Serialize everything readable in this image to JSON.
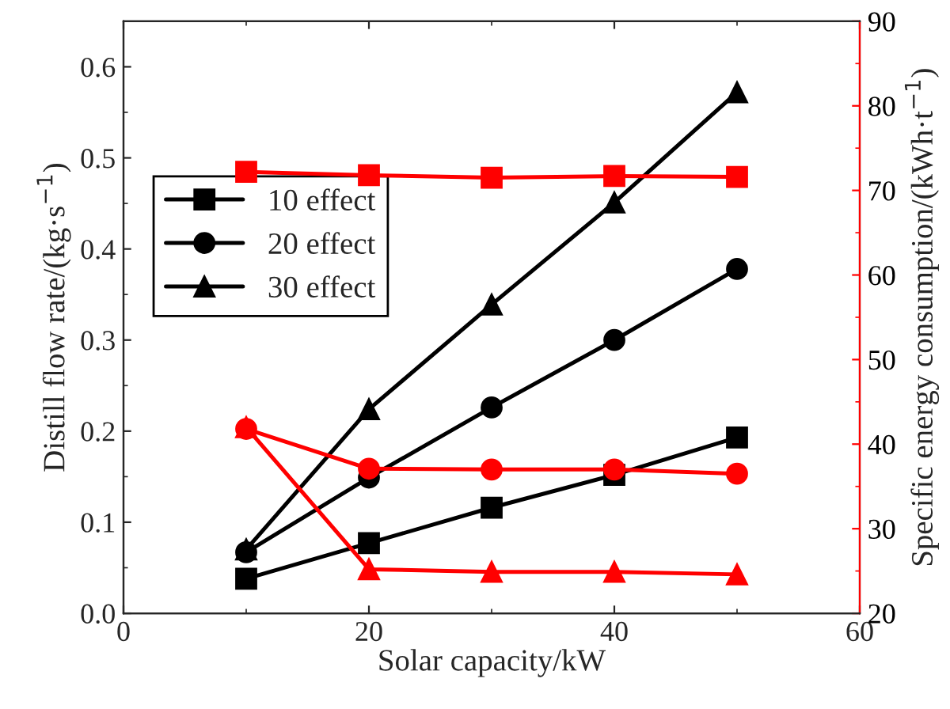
{
  "chart_data": {
    "type": "line",
    "xlabel": "Solar capacity/kW",
    "ylabel": "Distill flow rate/(kg·s$^{−1}$)",
    "y2label": "Specific energy consumption/(kWh·t$^{−1}$)",
    "x": [
      10,
      20,
      30,
      40,
      50
    ],
    "series": [
      {
        "name": "10 effect",
        "color": "#000000",
        "marker": "square",
        "values": [
          0.038,
          0.077,
          0.116,
          0.152,
          0.193
        ]
      },
      {
        "name": "20 effect",
        "color": "#000000",
        "marker": "circle",
        "values": [
          0.067,
          0.149,
          0.226,
          0.3,
          0.378
        ]
      },
      {
        "name": "30 effect",
        "color": "#000000",
        "marker": "triangle",
        "values": [
          0.07,
          0.224,
          0.339,
          0.451,
          0.572
        ]
      },
      {
        "color": "#ff0000",
        "marker": "square",
        "axis": "y2",
        "values": [
          72.2,
          71.8,
          71.5,
          71.7,
          71.6
        ]
      },
      {
        "color": "#ff0000",
        "marker": "circle",
        "axis": "y2",
        "values": [
          41.8,
          37.1,
          37.0,
          37.0,
          36.5
        ]
      },
      {
        "color": "#ff0000",
        "marker": "triangle",
        "axis": "y2",
        "values": [
          42.0,
          25.2,
          24.9,
          24.9,
          24.6
        ]
      }
    ],
    "xlim": [
      0,
      60
    ],
    "xticks": [
      0,
      20,
      40,
      60
    ],
    "ylim": [
      0,
      0.65
    ],
    "yticks": [
      {
        "value": 0,
        "label": "0.0"
      },
      0.1,
      0.2,
      0.3,
      0.4,
      0.5,
      0.6
    ],
    "y2lim": [
      20,
      90
    ],
    "y2ticks": [
      20,
      30,
      40,
      50,
      60,
      70,
      80,
      90
    ],
    "grid": false,
    "legend": "left",
    "line_style": "solid"
  }
}
